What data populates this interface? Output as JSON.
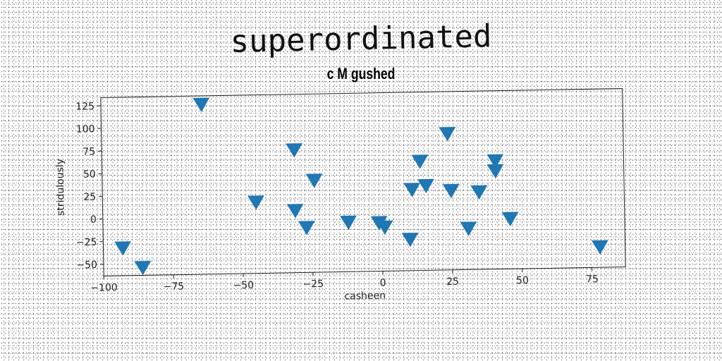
{
  "chart_data": {
    "type": "scatter",
    "title": "superordinated",
    "subtitle": "c M gushed",
    "xlabel": "casheen",
    "ylabel": "stridulously",
    "xlim": [
      -100,
      87
    ],
    "ylim": [
      -63,
      134
    ],
    "xticks": [
      -100,
      -75,
      -50,
      -25,
      0,
      25,
      50,
      75
    ],
    "yticks": [
      125,
      100,
      75,
      50,
      25,
      0,
      -25,
      -50
    ],
    "xtick_labels": [
      "−100",
      "−75",
      "−50",
      "−25",
      "0",
      "25",
      "50",
      "75"
    ],
    "ytick_labels": [
      "125",
      "100",
      "75",
      "50",
      "25",
      "0",
      "−25",
      "−50"
    ],
    "grid": false,
    "marker": "triangle-down",
    "color": "#1f77b4",
    "points": [
      {
        "x": -93,
        "y": -32
      },
      {
        "x": -86,
        "y": -54
      },
      {
        "x": -64,
        "y": 125
      },
      {
        "x": -45,
        "y": 16
      },
      {
        "x": -31,
        "y": 73
      },
      {
        "x": -31,
        "y": 6
      },
      {
        "x": -27,
        "y": -13
      },
      {
        "x": -24,
        "y": 39
      },
      {
        "x": -12,
        "y": -8
      },
      {
        "x": -1,
        "y": -9
      },
      {
        "x": 1,
        "y": -14
      },
      {
        "x": 10,
        "y": -28
      },
      {
        "x": 11,
        "y": 27
      },
      {
        "x": 14,
        "y": 58
      },
      {
        "x": 16,
        "y": 31
      },
      {
        "x": 24,
        "y": 88
      },
      {
        "x": 25,
        "y": 25
      },
      {
        "x": 31,
        "y": -17
      },
      {
        "x": 35,
        "y": 23
      },
      {
        "x": 41,
        "y": 57
      },
      {
        "x": 41,
        "y": 46
      },
      {
        "x": 46,
        "y": -7
      },
      {
        "x": 78,
        "y": -40
      }
    ]
  }
}
